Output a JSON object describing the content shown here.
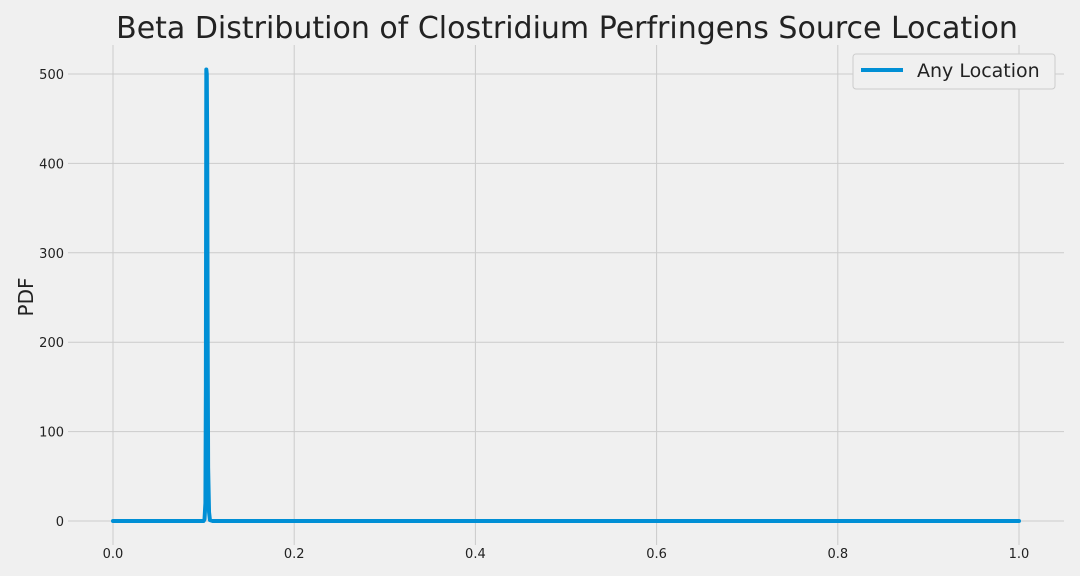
{
  "chart_data": {
    "type": "line",
    "title": "Beta Distribution of Clostridium Perfringens Source Location",
    "xlabel": "",
    "ylabel": "PDF",
    "xlim": [
      0.0,
      1.0
    ],
    "ylim": [
      0,
      500
    ],
    "x_ticks": [
      0.0,
      0.2,
      0.4,
      0.6,
      0.8,
      1.0
    ],
    "x_tick_labels": [
      "0.0",
      "0.2",
      "0.4",
      "0.6",
      "0.8",
      "1.0"
    ],
    "y_ticks": [
      0,
      100,
      200,
      300,
      400,
      500
    ],
    "y_tick_labels": [
      "0",
      "100",
      "200",
      "300",
      "400",
      "500"
    ],
    "grid": true,
    "legend_position": "top-right",
    "series": [
      {
        "name": "Any Location",
        "color": "#008fd5",
        "points": [
          [
            0.0,
            0
          ],
          [
            0.1,
            0
          ],
          [
            0.101,
            2
          ],
          [
            0.102,
            20
          ],
          [
            0.1025,
            150
          ],
          [
            0.103,
            505
          ],
          [
            0.1035,
            500
          ],
          [
            0.104,
            420
          ],
          [
            0.1045,
            200
          ],
          [
            0.105,
            60
          ],
          [
            0.106,
            10
          ],
          [
            0.107,
            1
          ],
          [
            0.11,
            0
          ],
          [
            1.0,
            0
          ]
        ]
      }
    ]
  }
}
